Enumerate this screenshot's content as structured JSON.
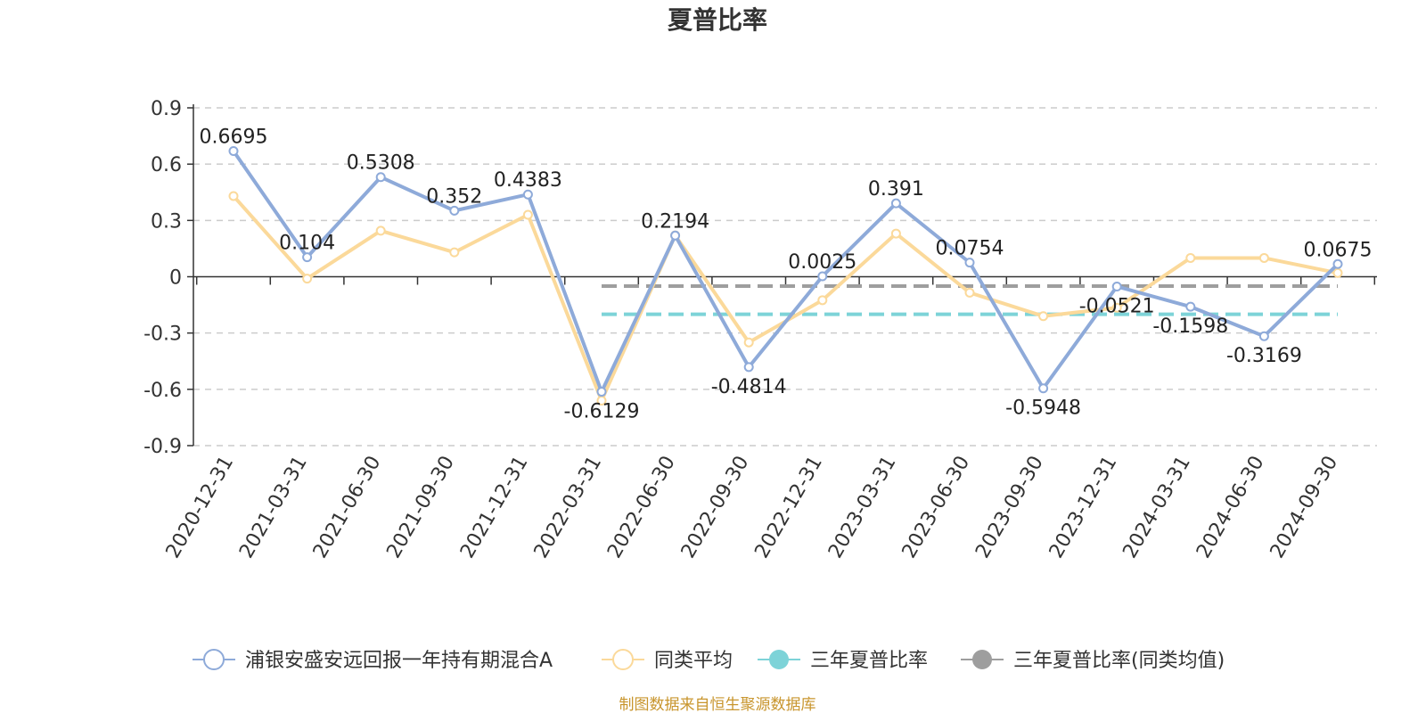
{
  "chart_data": {
    "type": "line",
    "title": "夏普比率",
    "categories": [
      "2020-12-31",
      "2021-03-31",
      "2021-06-30",
      "2021-09-30",
      "2021-12-31",
      "2022-03-31",
      "2022-06-30",
      "2022-09-30",
      "2022-12-31",
      "2023-03-31",
      "2023-06-30",
      "2023-09-30",
      "2023-12-31",
      "2024-03-31",
      "2024-06-30",
      "2024-09-30"
    ],
    "y_ticks": [
      "0.9",
      "0.6",
      "0.3",
      "0",
      "-0.3",
      "-0.6",
      "-0.9"
    ],
    "ylim": [
      -0.9,
      0.9
    ],
    "grid": true,
    "legend_position": "bottom",
    "series": [
      {
        "name": "浦银安盛安远回报一年持有期混合A",
        "color": "#8eaad9",
        "values": [
          0.6695,
          0.104,
          0.5308,
          0.352,
          0.4383,
          -0.6129,
          0.2194,
          -0.4814,
          0.0025,
          0.391,
          0.0754,
          -0.5948,
          -0.0521,
          -0.1598,
          -0.3169,
          0.0675
        ],
        "labels": [
          "0.6695",
          "0.104",
          "0.5308",
          "0.352",
          "0.4383",
          "-0.6129",
          "0.2194",
          "-0.4814",
          "0.0025",
          "0.391",
          "0.0754",
          "-0.5948",
          "-0.0521",
          "-0.1598",
          "-0.3169",
          "0.0675"
        ]
      },
      {
        "name": "同类平均",
        "color": "#fbd99a",
        "values": [
          0.43,
          -0.01,
          0.245,
          0.13,
          0.33,
          -0.66,
          0.22,
          -0.35,
          -0.125,
          0.23,
          -0.085,
          -0.21,
          -0.165,
          0.1,
          0.1,
          0.02
        ]
      },
      {
        "name": "三年夏普比率",
        "color": "#7dd3d8",
        "type": "dashed-reference",
        "value": -0.2,
        "start_category": "2022-03-31",
        "end_category": "2024-09-30"
      },
      {
        "name": "三年夏普比率(同类均值)",
        "color": "#9e9e9e",
        "type": "dashed-reference",
        "value": -0.05,
        "start_category": "2022-03-31",
        "end_category": "2024-09-30"
      }
    ]
  },
  "source_note": "制图数据来自恒生聚源数据库",
  "colors": {
    "axis": "#333333",
    "grid": "#cccccc",
    "source_text": "#c8952d"
  }
}
